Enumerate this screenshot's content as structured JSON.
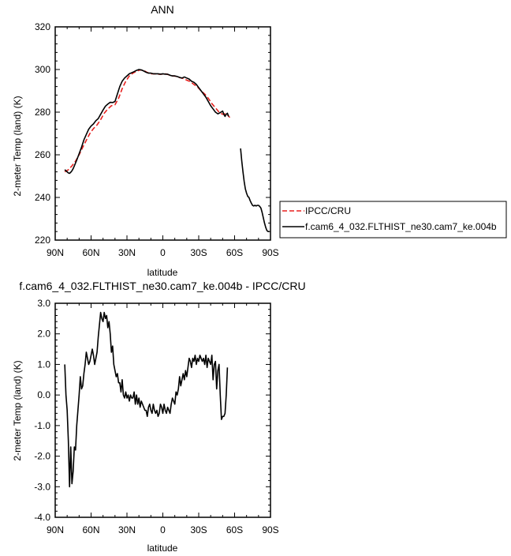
{
  "chart_data": [
    {
      "type": "line",
      "title": "ANN",
      "xlabel": "latitude",
      "ylabel": "2-meter Temp (land) (K)",
      "xlim": [
        90,
        -90
      ],
      "ylim": [
        220,
        320
      ],
      "xticks": [
        90,
        60,
        30,
        0,
        -30,
        -60,
        -90
      ],
      "xtick_labels": [
        "90N",
        "60N",
        "30N",
        "0",
        "30S",
        "60S",
        "90S"
      ],
      "yticks": [
        220,
        240,
        260,
        280,
        300,
        320
      ],
      "ytick_labels": [
        "220",
        "240",
        "260",
        "280",
        "300",
        "320"
      ],
      "legend_position": "right",
      "series": [
        {
          "name": "IPCC/CRU",
          "color": "#e8211f",
          "style": "dashed",
          "x": [
            82,
            79,
            76,
            73,
            70,
            67,
            64,
            61,
            58,
            55,
            52,
            49,
            46,
            43,
            40,
            37,
            34,
            31,
            28,
            25,
            22,
            19,
            16,
            13,
            10,
            7,
            4,
            1,
            -2,
            -5,
            -8,
            -11,
            -14,
            -17,
            -20,
            -23,
            -26,
            -29,
            -32,
            -35,
            -38,
            -41,
            -44,
            -47,
            -50,
            -53,
            -56
          ],
          "y": [
            252.0,
            253.0,
            254.8,
            257.0,
            260.0,
            263.5,
            266.8,
            270.0,
            272.3,
            274.0,
            276.5,
            279.5,
            281.5,
            283.0,
            283.5,
            286.5,
            291.0,
            294.5,
            297.0,
            298.3,
            299.2,
            299.8,
            299.6,
            298.6,
            298.0,
            298.0,
            297.8,
            297.8,
            298.0,
            297.5,
            297.0,
            296.8,
            296.2,
            295.8,
            295.0,
            294.3,
            293.0,
            291.8,
            290.0,
            288.5,
            286.5,
            284.0,
            282.0,
            280.0,
            279.0,
            279.3,
            277.5
          ]
        },
        {
          "name": "f.cam6_4_032.FLTHIST_ne30.cam7_ke.004b",
          "color": "#000000",
          "style": "solid",
          "x": [
            82,
            80,
            79,
            78,
            77,
            76,
            75,
            74,
            72,
            70,
            68,
            66,
            64,
            62,
            60,
            58,
            56,
            54,
            52,
            50,
            48,
            46,
            44,
            42,
            40,
            38,
            36,
            34,
            32,
            30,
            28,
            26,
            24,
            22,
            20,
            18,
            16,
            14,
            12,
            10,
            8,
            6,
            4,
            2,
            0,
            -2,
            -4,
            -6,
            -8,
            -10,
            -12,
            -14,
            -16,
            -18,
            -20,
            -22,
            -24,
            -26,
            -28,
            -30,
            -32,
            -34,
            -36,
            -38,
            -40,
            -42,
            -44,
            -46,
            -48,
            -50,
            -51,
            -52,
            -53,
            -54,
            -55,
            null,
            -65,
            -66,
            -67,
            -68,
            -69,
            -70,
            -71,
            -72,
            -73,
            -74,
            -75,
            -76,
            -77,
            -78,
            -79,
            -80,
            -81,
            -82,
            -83,
            -84,
            -85,
            -86,
            -87,
            -88,
            -89
          ],
          "y": [
            253.0,
            252.0,
            251.5,
            251.3,
            251.8,
            252.5,
            253.5,
            254.8,
            257.5,
            260.5,
            263.5,
            267.0,
            269.5,
            272.0,
            273.5,
            274.5,
            276.0,
            277.0,
            279.0,
            281.0,
            282.8,
            283.8,
            284.6,
            284.5,
            285.0,
            288.5,
            292.0,
            294.5,
            296.0,
            297.0,
            298.0,
            298.5,
            299.0,
            299.6,
            300.0,
            299.8,
            299.3,
            298.7,
            298.3,
            298.3,
            298.0,
            298.0,
            298.0,
            297.8,
            298.0,
            297.8,
            297.8,
            297.3,
            297.0,
            297.0,
            296.7,
            296.3,
            296.0,
            296.5,
            296.0,
            295.5,
            294.5,
            294.0,
            293.0,
            291.5,
            290.0,
            288.5,
            287.0,
            285.0,
            283.0,
            281.5,
            280.0,
            279.2,
            279.8,
            280.5,
            279.0,
            278.0,
            279.0,
            279.5,
            278.0,
            null,
            263.0,
            257.0,
            252.0,
            247.5,
            244.0,
            242.0,
            240.5,
            240.0,
            238.5,
            237.3,
            236.3,
            236.0,
            236.3,
            236.0,
            236.3,
            236.3,
            235.8,
            235.0,
            233.0,
            230.5,
            228.0,
            226.0,
            224.5,
            224.0,
            224.0
          ]
        }
      ]
    },
    {
      "type": "line",
      "title": "f.cam6_4_032.FLTHIST_ne30.cam7_ke.004b - IPCC/CRU",
      "xlabel": "latitude",
      "ylabel": "2-meter Temp (land) (K)",
      "xlim": [
        90,
        -90
      ],
      "ylim": [
        -4,
        3
      ],
      "xticks": [
        90,
        60,
        30,
        0,
        -30,
        -60,
        -90
      ],
      "xtick_labels": [
        "90N",
        "60N",
        "30N",
        "0",
        "30S",
        "60S",
        "90S"
      ],
      "yticks": [
        -4,
        -3,
        -2,
        -1,
        0,
        1,
        2,
        3
      ],
      "ytick_labels": [
        "-4.0",
        "-3.0",
        "-2.0",
        "-1.0",
        "0.0",
        "1.0",
        "2.0",
        "3.0"
      ],
      "series": [
        {
          "color": "#000000",
          "style": "solid",
          "x": [
            82,
            81,
            80,
            79,
            78,
            77,
            76,
            75,
            74,
            73,
            72,
            71,
            70,
            69,
            68,
            67,
            66,
            65,
            64,
            63,
            62,
            61,
            60,
            59,
            58,
            57,
            56,
            55,
            54,
            53,
            52,
            51,
            50,
            49,
            48,
            47,
            46,
            45,
            44,
            43,
            42,
            41,
            40,
            39,
            38,
            37,
            36,
            35,
            34,
            33,
            32,
            31,
            30,
            29,
            28,
            27,
            26,
            25,
            24,
            23,
            22,
            21,
            20,
            19,
            18,
            17,
            16,
            15,
            14,
            13,
            12,
            11,
            10,
            9,
            8,
            7,
            6,
            5,
            4,
            3,
            2,
            1,
            0,
            -1,
            -2,
            -3,
            -4,
            -5,
            -6,
            -7,
            -8,
            -9,
            -10,
            -11,
            -12,
            -13,
            -14,
            -15,
            -16,
            -17,
            -18,
            -19,
            -20,
            -21,
            -22,
            -23,
            -24,
            -25,
            -26,
            -27,
            -28,
            -29,
            -30,
            -31,
            -32,
            -33,
            -34,
            -35,
            -36,
            -37,
            -38,
            -39,
            -40,
            -41,
            -42,
            -43,
            -44,
            -45,
            -46,
            -47,
            -48,
            -49,
            -50,
            -51,
            -52,
            -53,
            -54
          ],
          "y": [
            1.0,
            0.0,
            -0.5,
            -1.5,
            -3.0,
            -1.7,
            -2.9,
            -2.5,
            -1.7,
            -1.8,
            -1.0,
            -0.5,
            0.0,
            0.6,
            0.2,
            0.3,
            0.7,
            1.0,
            1.4,
            1.2,
            1.0,
            1.1,
            1.3,
            1.5,
            1.3,
            1.0,
            1.2,
            1.4,
            1.9,
            2.3,
            2.7,
            2.5,
            2.4,
            2.7,
            2.5,
            2.6,
            2.2,
            2.4,
            2.0,
            1.4,
            1.6,
            1.0,
            0.8,
            0.6,
            0.7,
            0.4,
            0.4,
            0.1,
            0.5,
            0.0,
            -0.1,
            0.1,
            -0.1,
            0.0,
            -0.2,
            0.0,
            -0.1,
            -0.1,
            0.1,
            -0.3,
            0.0,
            -0.3,
            -0.1,
            -0.4,
            -0.2,
            -0.3,
            -0.4,
            -0.5,
            -0.5,
            -0.7,
            -0.4,
            -0.3,
            -0.5,
            -0.6,
            -0.3,
            -0.5,
            -0.6,
            -0.5,
            -0.7,
            -0.6,
            -0.3,
            -0.4,
            -0.6,
            -0.3,
            -0.5,
            -0.6,
            -0.4,
            -0.5,
            -0.6,
            -0.3,
            -0.1,
            -0.2,
            -0.3,
            0.1,
            0.0,
            0.2,
            0.6,
            0.3,
            0.5,
            0.7,
            0.5,
            0.8,
            0.6,
            0.9,
            1.2,
            1.1,
            0.9,
            1.2,
            1.1,
            1.3,
            1.0,
            1.2,
            1.1,
            1.3,
            1.2,
            1.1,
            1.2,
            1.0,
            1.3,
            0.9,
            1.2,
            1.1,
            1.0,
            1.3,
            0.5,
            1.0,
            1.1,
            0.2,
            0.8,
            1.0,
            0.0,
            -0.8,
            -0.7,
            -0.7,
            -0.6,
            0.0,
            0.9
          ]
        }
      ]
    }
  ]
}
